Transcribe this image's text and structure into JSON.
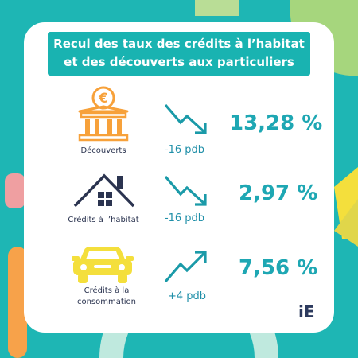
{
  "title": "Recul des taux des crédits à l’habitat et des découverts aux particuliers",
  "rows": [
    {
      "label": "Découverts",
      "delta": "-16 pdb",
      "value": "13,28 %",
      "trend": "down"
    },
    {
      "label": "Crédits à l’habitat",
      "delta": "-16 pdb",
      "value": "2,97 %",
      "trend": "down"
    },
    {
      "label": "Crédits à la consommation",
      "delta": "+4 pdb",
      "value": "7,56 %",
      "trend": "up"
    }
  ],
  "logo": {
    "text": "iE"
  },
  "colors": {
    "teal": "#1eb6b4",
    "orange": "#f7a13a",
    "navy": "#2b3450",
    "yellow": "#f4df3c",
    "arrow": "#1a9aa8"
  },
  "icons": [
    "bank-euro-icon",
    "house-icon",
    "car-icon",
    "arrow-down-icon",
    "arrow-up-icon"
  ]
}
